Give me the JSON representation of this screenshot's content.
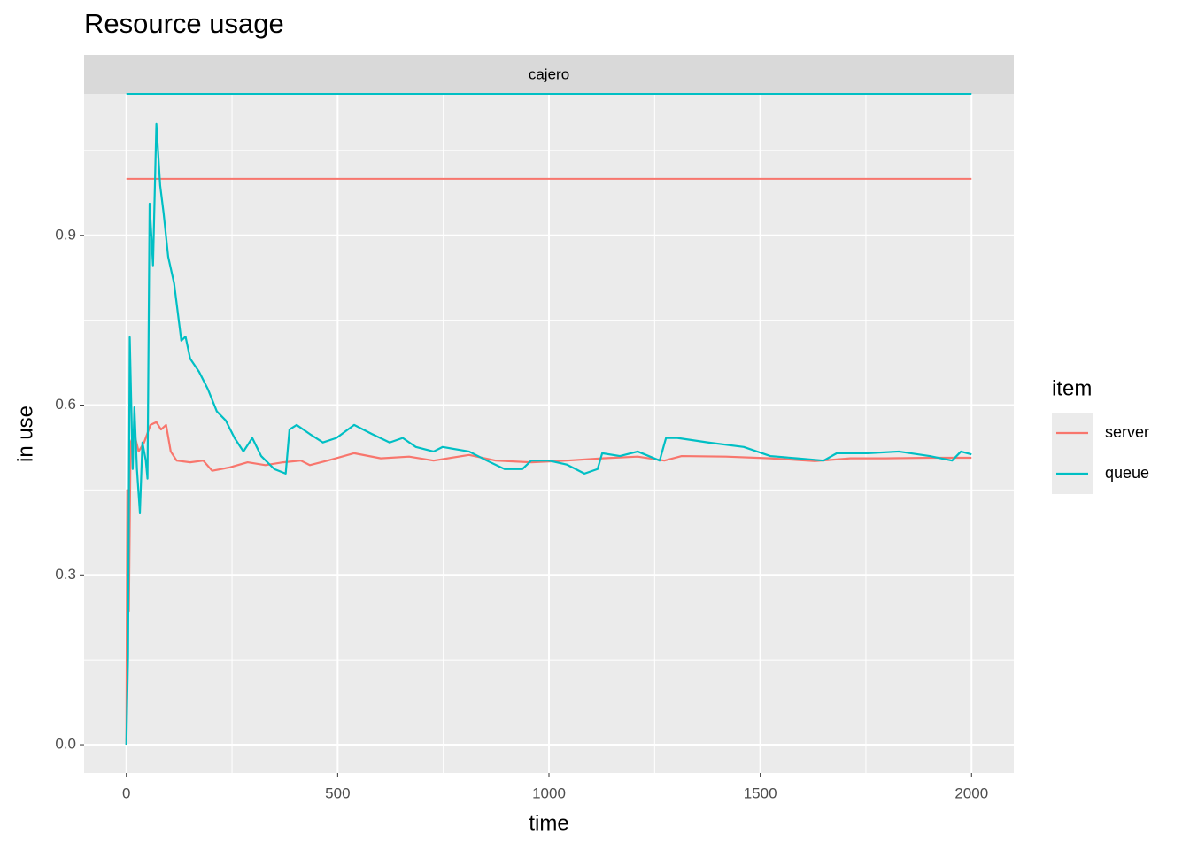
{
  "chart_data": {
    "type": "line",
    "title": "Resource usage",
    "facet": "cajero",
    "x_label": "time",
    "y_label": "in use",
    "legend_title": "item",
    "legend_position": "right",
    "xlim": [
      -100,
      2100
    ],
    "xticks": [
      0,
      500,
      1000,
      1500,
      2000
    ],
    "x_minor": [
      250,
      750,
      1250,
      1750
    ],
    "ylim": [
      -0.05,
      1.15
    ],
    "yticks": [
      {
        "value": 0,
        "label": "0.0"
      },
      0.3,
      0.6,
      0.9
    ],
    "y_minor": [
      0.15,
      0.45,
      0.75,
      1.05
    ],
    "grid": true,
    "series": [
      {
        "name": "server",
        "color": "#F8766D",
        "limit": 1.0,
        "x": [
          0,
          2,
          6,
          10,
          19,
          29,
          42,
          57,
          71,
          82,
          94,
          105,
          119,
          151,
          182,
          203,
          245,
          287,
          329,
          371,
          413,
          434,
          476,
          539,
          602,
          669,
          727,
          811,
          874,
          958,
          1042,
          1126,
          1210,
          1273,
          1314,
          1419,
          1524,
          1629,
          1713,
          1797,
          1901,
          2000
        ],
        "values": [
          0,
          0.45,
          0.236,
          0.534,
          0.549,
          0.518,
          0.534,
          0.565,
          0.57,
          0.557,
          0.565,
          0.518,
          0.502,
          0.499,
          0.502,
          0.484,
          0.49,
          0.499,
          0.494,
          0.499,
          0.502,
          0.494,
          0.502,
          0.515,
          0.506,
          0.509,
          0.502,
          0.512,
          0.502,
          0.499,
          0.502,
          0.506,
          0.509,
          0.502,
          0.51,
          0.509,
          0.506,
          0.501,
          0.506,
          0.506,
          0.507,
          0.507
        ]
      },
      {
        "name": "queue",
        "color": "#00BFC4",
        "limit": 1.15,
        "x": [
          0,
          4,
          8,
          15,
          19,
          25,
          32,
          38,
          46,
          50,
          55,
          63,
          71,
          80,
          88,
          99,
          113,
          130,
          140,
          151,
          172,
          193,
          214,
          235,
          256,
          277,
          298,
          319,
          350,
          377,
          386,
          403,
          434,
          465,
          497,
          539,
          581,
          623,
          654,
          685,
          727,
          748,
          811,
          853,
          895,
          937,
          958,
          1000,
          1042,
          1084,
          1115,
          1126,
          1168,
          1210,
          1262,
          1277,
          1304,
          1377,
          1461,
          1524,
          1587,
          1650,
          1681,
          1755,
          1828,
          1901,
          1954,
          1975,
          2000
        ],
        "values": [
          0,
          0.158,
          0.72,
          0.487,
          0.596,
          0.487,
          0.41,
          0.534,
          0.502,
          0.47,
          0.956,
          0.847,
          1.097,
          0.988,
          0.94,
          0.862,
          0.815,
          0.714,
          0.721,
          0.682,
          0.659,
          0.628,
          0.589,
          0.573,
          0.542,
          0.518,
          0.542,
          0.51,
          0.487,
          0.479,
          0.557,
          0.565,
          0.549,
          0.534,
          0.542,
          0.565,
          0.549,
          0.534,
          0.542,
          0.526,
          0.518,
          0.526,
          0.518,
          0.502,
          0.487,
          0.487,
          0.502,
          0.502,
          0.495,
          0.479,
          0.487,
          0.515,
          0.51,
          0.518,
          0.502,
          0.542,
          0.542,
          0.534,
          0.526,
          0.51,
          0.506,
          0.502,
          0.515,
          0.515,
          0.518,
          0.51,
          0.502,
          0.518,
          0.513
        ]
      }
    ]
  }
}
